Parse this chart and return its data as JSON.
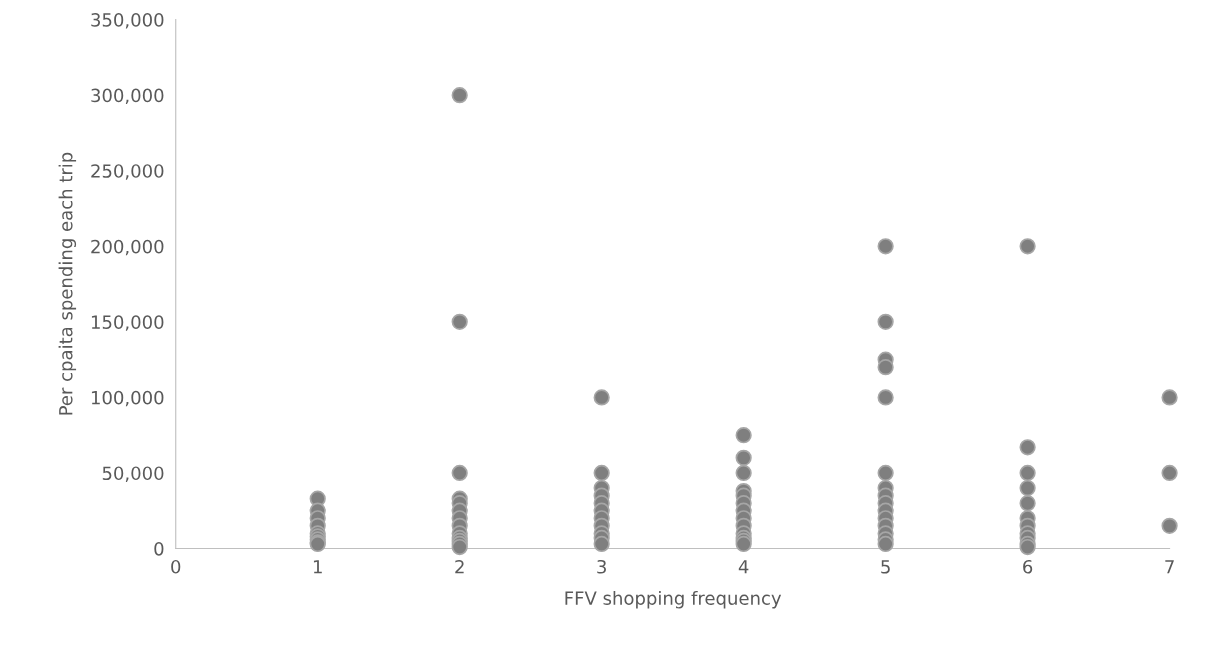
{
  "chart_data": {
    "type": "scatter",
    "xlabel": "FFV shopping frequency",
    "ylabel": "Per cpaita spending each trip",
    "xlim": [
      0,
      7
    ],
    "xticks": [
      0,
      1,
      2,
      3,
      4,
      5,
      6,
      7
    ],
    "ylim": [
      0,
      350000
    ],
    "yticks": [
      {
        "value": 0,
        "label": "0"
      },
      {
        "value": 50000,
        "label": "50,000"
      },
      {
        "value": 100000,
        "label": "100,000"
      },
      {
        "value": 150000,
        "label": "150,000"
      },
      {
        "value": 200000,
        "label": "200,000"
      },
      {
        "value": 250000,
        "label": "250,000"
      },
      {
        "value": 300000,
        "label": "300,000"
      },
      {
        "value": 350000,
        "label": "350,000"
      }
    ],
    "grid": false,
    "marker": "circle",
    "series": [
      {
        "color": "#7f7f7f",
        "x": [
          1,
          1,
          1,
          1,
          1,
          1,
          1,
          1,
          1,
          2,
          2,
          2,
          2,
          2,
          2,
          2,
          2,
          2,
          2,
          2,
          2,
          2,
          3,
          3,
          3,
          3,
          3,
          3,
          3,
          3,
          3,
          3,
          3,
          4,
          4,
          4,
          4,
          4,
          4,
          4,
          4,
          4,
          4,
          4,
          4,
          4,
          5,
          5,
          5,
          5,
          5,
          5,
          5,
          5,
          5,
          5,
          5,
          5,
          5,
          5,
          5,
          6,
          6,
          6,
          6,
          6,
          6,
          6,
          6,
          6,
          6,
          6,
          7,
          7,
          7
        ],
        "values": [
          33000,
          25000,
          20000,
          15000,
          10000,
          8000,
          6000,
          4000,
          3000,
          300000,
          150000,
          50000,
          33000,
          30000,
          25000,
          20000,
          15000,
          10000,
          7000,
          5000,
          3000,
          1000,
          100000,
          50000,
          40000,
          35000,
          30000,
          25000,
          20000,
          15000,
          10000,
          7000,
          3000,
          75000,
          60000,
          50000,
          38000,
          35000,
          30000,
          25000,
          20000,
          15000,
          10000,
          7000,
          5000,
          3000,
          200000,
          150000,
          125000,
          120000,
          100000,
          50000,
          40000,
          35000,
          30000,
          25000,
          20000,
          15000,
          10000,
          6000,
          3000,
          200000,
          67000,
          50000,
          40000,
          30000,
          20000,
          15000,
          10000,
          7000,
          3000,
          1000,
          100000,
          50000,
          15000
        ]
      }
    ]
  }
}
